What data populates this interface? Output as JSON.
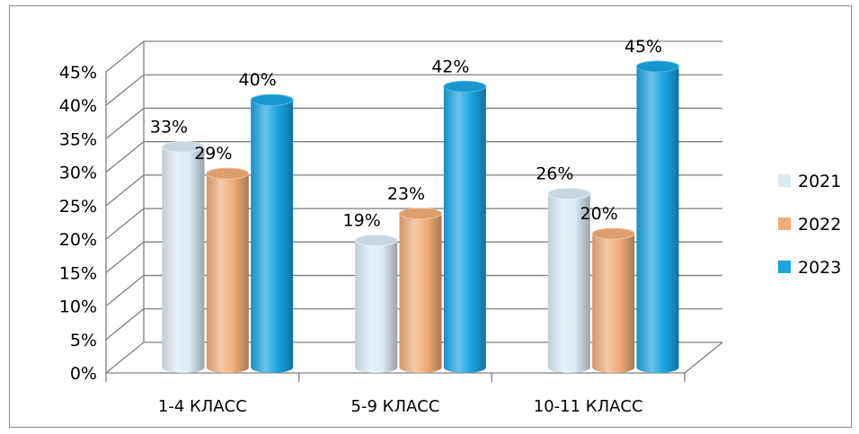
{
  "chart_data": {
    "type": "bar",
    "style": "3d-cylinder",
    "title": "",
    "xlabel": "",
    "ylabel": "",
    "categories": [
      "1-4 КЛАСС",
      "5-9 КЛАСС",
      "10-11 КЛАСС"
    ],
    "series": [
      {
        "name": "2021",
        "values": [
          33,
          19,
          26
        ],
        "color": "#dbe9f2"
      },
      {
        "name": "2022",
        "values": [
          29,
          23,
          20
        ],
        "color": "#f0ac78"
      },
      {
        "name": "2023",
        "values": [
          40,
          42,
          45
        ],
        "color": "#1aa3e0"
      }
    ],
    "ylim": [
      0,
      45
    ],
    "ytick_step": 5,
    "value_format": "percent",
    "grid": true,
    "legend": "right"
  }
}
